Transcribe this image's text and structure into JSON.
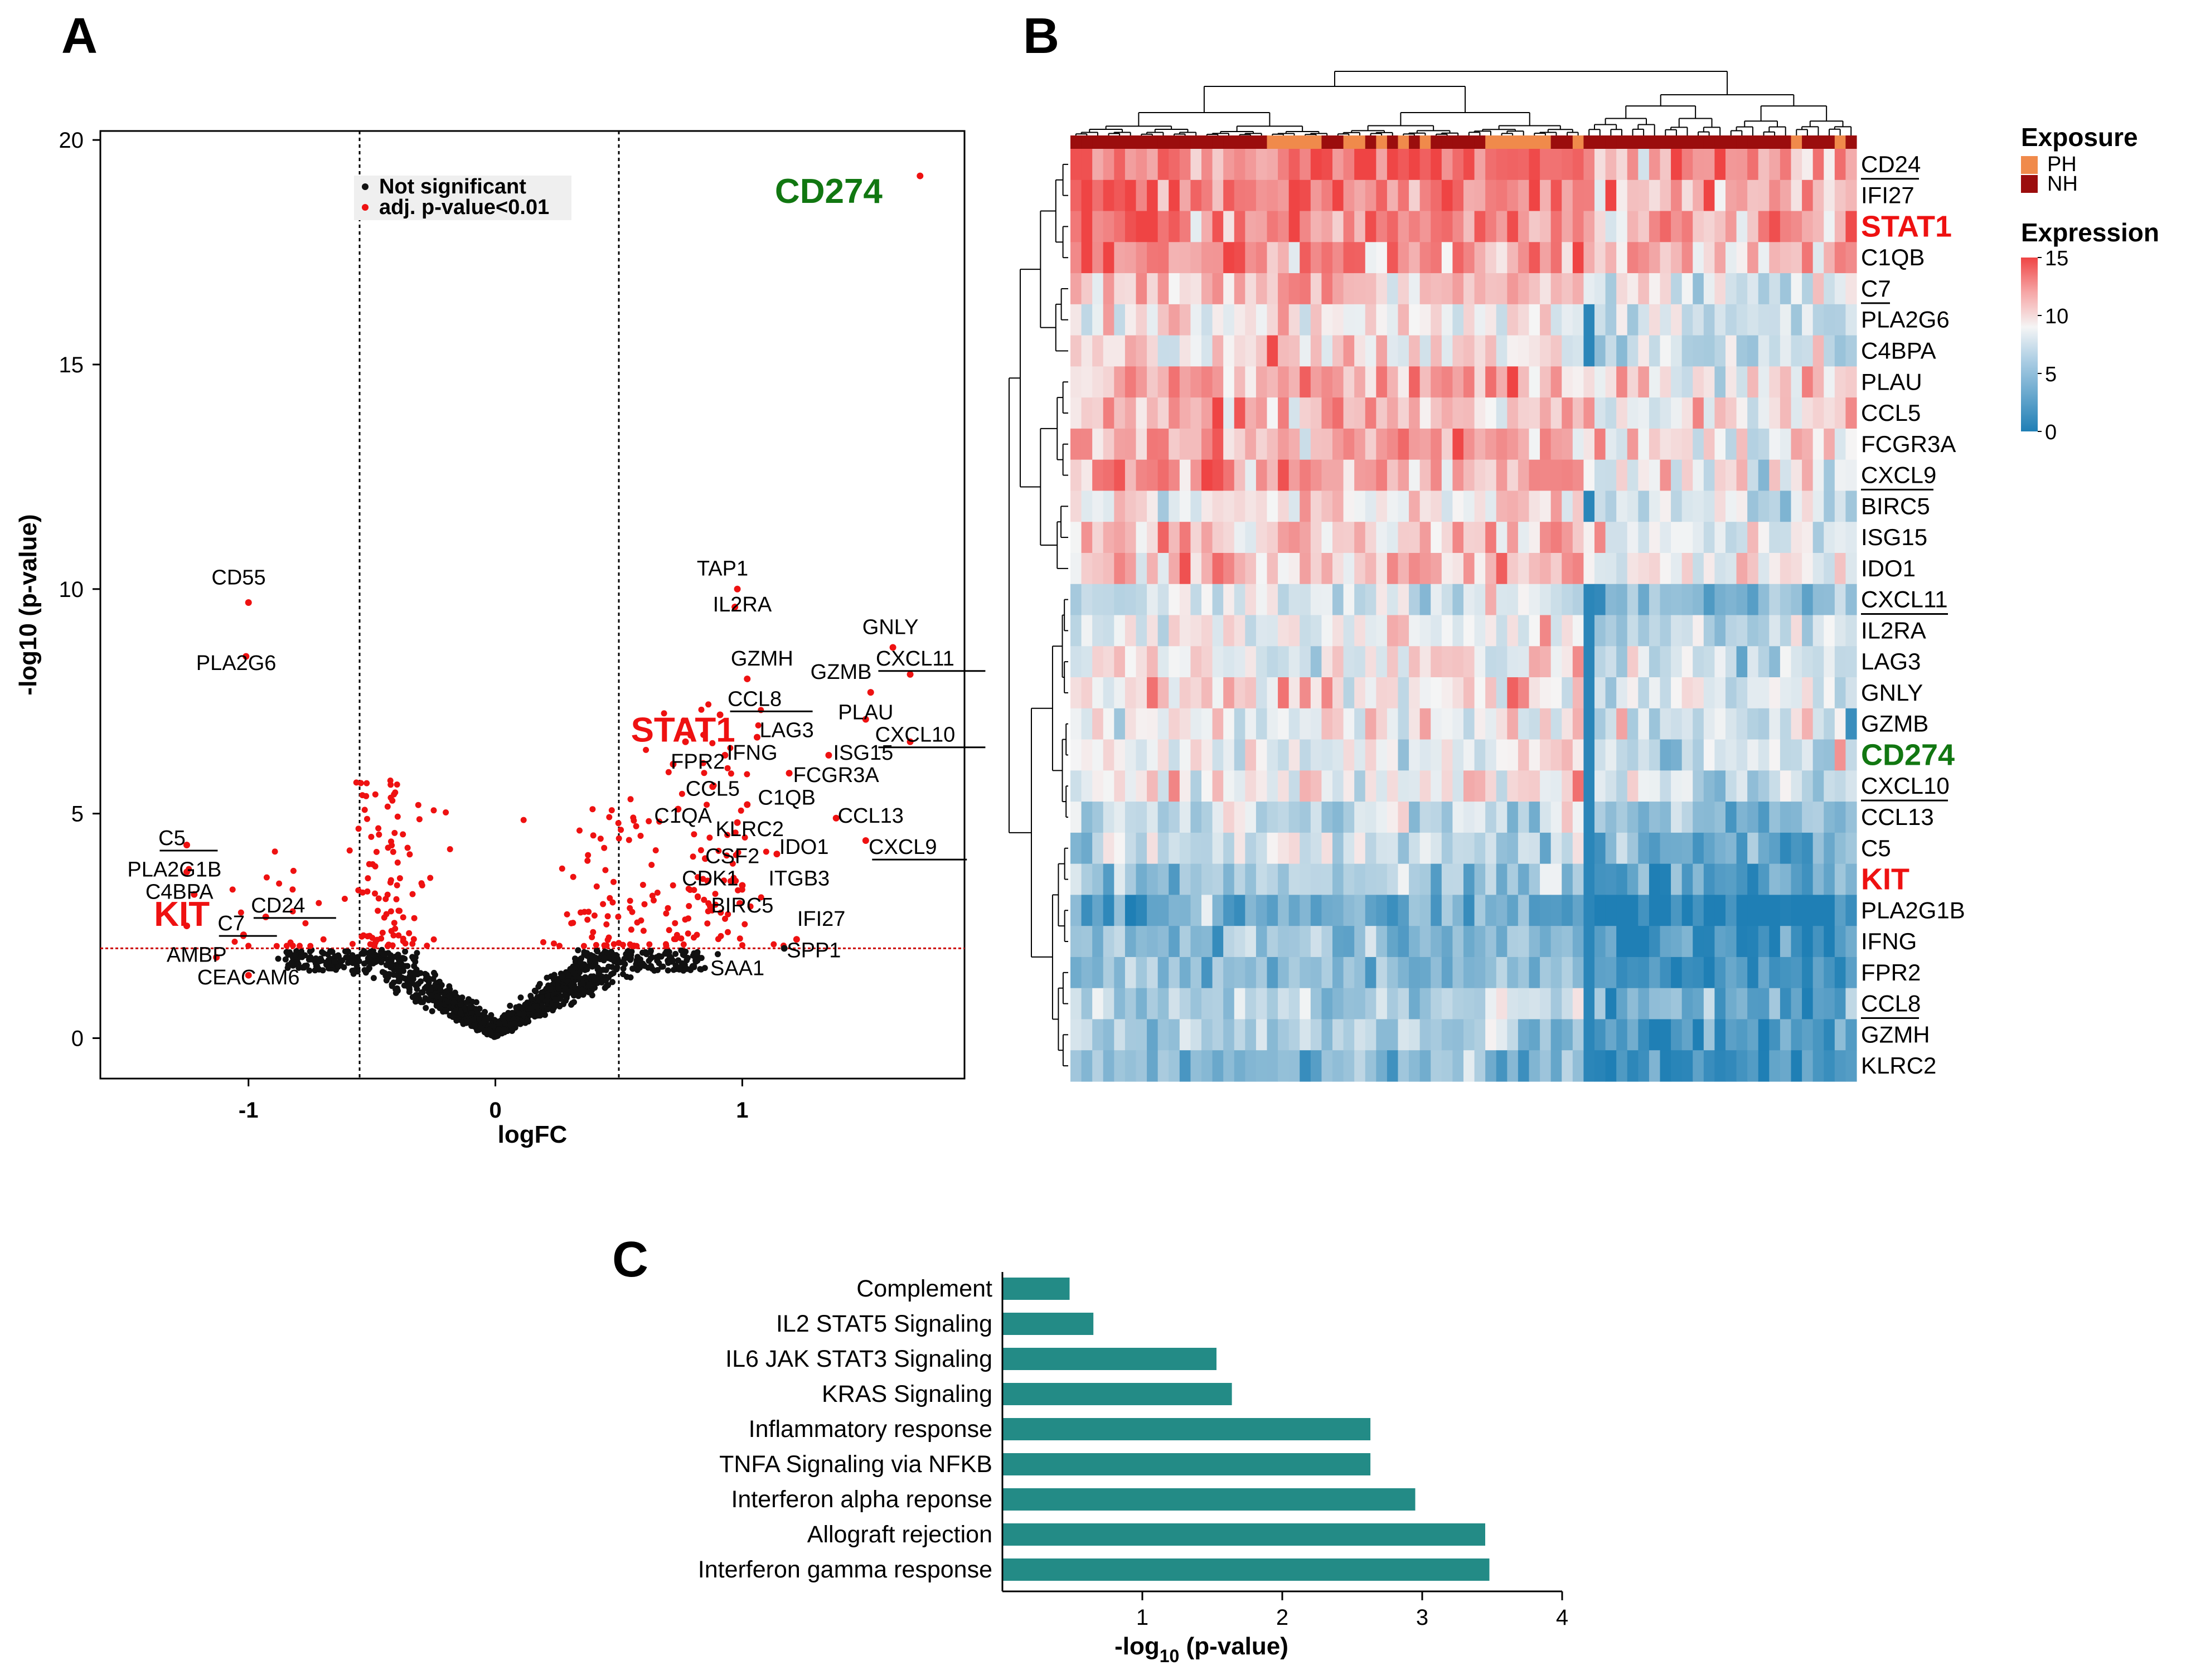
{
  "panels": {
    "a": {
      "letter": "A"
    },
    "b": {
      "letter": "B"
    },
    "c": {
      "letter": "C"
    }
  },
  "colors": {
    "sig": "#ee1111",
    "nonsig": "#111111",
    "highlight_red": "#ee1111",
    "highlight_green": "#117711",
    "bar": "#238b86",
    "ph": "#f08a4b",
    "nh": "#9b0d0d",
    "heat_low": "#1f7fb5",
    "heat_mid": "#f5f5f5",
    "heat_high": "#ef4444"
  },
  "chart_data": [
    {
      "type": "scatter",
      "panel": "A",
      "title": "",
      "xlabel": "logFC",
      "ylabel": "-log10 (p-value)",
      "xlim": [
        -1.6,
        1.9
      ],
      "ylim": [
        -0.9,
        20.2
      ],
      "xticks": [
        -1,
        0,
        1
      ],
      "yticks": [
        0,
        5,
        10,
        15,
        20
      ],
      "xtick_labels": [
        "-1",
        "0",
        "1"
      ],
      "ytick_labels": [
        "0",
        "5",
        "10",
        "15",
        "20"
      ],
      "vlines": [
        -0.55,
        0.5
      ],
      "hline": 2,
      "legend": {
        "placement": "top-left",
        "entries": [
          {
            "label": "Not significant",
            "color": "#111111"
          },
          {
            "label": "adj. p-value<0.01",
            "color": "#ee1111"
          }
        ]
      },
      "background_note": "about 1200 additional unlabeled genes follow the V-shaped distribution; sign generated procedurally",
      "labeled_points": [
        {
          "gene": "CD274",
          "x": 1.72,
          "y": 19.2,
          "lx": 1.35,
          "ly": 18.6,
          "style": "green",
          "underline": false
        },
        {
          "gene": "CD55",
          "x": -1.0,
          "y": 9.7,
          "lx": -1.04,
          "ly": 10.1,
          "style": "normal",
          "underline": false
        },
        {
          "gene": "PLA2G6",
          "x": -1.01,
          "y": 8.5,
          "lx": -1.05,
          "ly": 8.2,
          "style": "normal",
          "underline": false
        },
        {
          "gene": "TAP1",
          "x": 0.98,
          "y": 10.0,
          "lx": 0.92,
          "ly": 10.3,
          "style": "normal",
          "underline": false
        },
        {
          "gene": "IL2RA",
          "x": 0.97,
          "y": 9.6,
          "lx": 1.0,
          "ly": 9.5,
          "style": "normal",
          "underline": false
        },
        {
          "gene": "GNLY",
          "x": 1.61,
          "y": 8.7,
          "lx": 1.6,
          "ly": 9.0,
          "style": "normal",
          "underline": false
        },
        {
          "gene": "CXCL11",
          "x": 1.68,
          "y": 8.1,
          "lx": 1.7,
          "ly": 8.3,
          "style": "normal",
          "underline": true
        },
        {
          "gene": "GZMH",
          "x": 1.02,
          "y": 8.0,
          "lx": 1.08,
          "ly": 8.3,
          "style": "normal",
          "underline": false
        },
        {
          "gene": "GZMB",
          "x": 1.52,
          "y": 7.7,
          "lx": 1.4,
          "ly": 8.0,
          "style": "normal",
          "underline": false
        },
        {
          "gene": "CCL8",
          "x": 0.91,
          "y": 7.2,
          "lx": 1.05,
          "ly": 7.4,
          "style": "normal",
          "underline": true
        },
        {
          "gene": "PLAU",
          "x": 1.5,
          "y": 7.1,
          "lx": 1.5,
          "ly": 7.1,
          "style": "normal",
          "underline": false
        },
        {
          "gene": "STAT1",
          "x": 0.77,
          "y": 6.6,
          "lx": 0.76,
          "ly": 6.6,
          "style": "red",
          "underline": false
        },
        {
          "gene": "LAG3",
          "x": 1.06,
          "y": 6.7,
          "lx": 1.18,
          "ly": 6.7,
          "style": "normal",
          "underline": false
        },
        {
          "gene": "CXCL10",
          "x": 1.68,
          "y": 6.6,
          "lx": 1.7,
          "ly": 6.6,
          "style": "normal",
          "underline": true
        },
        {
          "gene": "IFNG",
          "x": 0.93,
          "y": 6.3,
          "lx": 1.04,
          "ly": 6.2,
          "style": "normal",
          "underline": false
        },
        {
          "gene": "ISG15",
          "x": 1.35,
          "y": 6.3,
          "lx": 1.49,
          "ly": 6.2,
          "style": "normal",
          "underline": false
        },
        {
          "gene": "FPR2",
          "x": 0.72,
          "y": 6.1,
          "lx": 0.82,
          "ly": 6.0,
          "style": "normal",
          "underline": false
        },
        {
          "gene": "FCGR3A",
          "x": 1.19,
          "y": 5.9,
          "lx": 1.38,
          "ly": 5.7,
          "style": "normal",
          "underline": false
        },
        {
          "gene": "CCL5",
          "x": 0.88,
          "y": 5.6,
          "lx": 0.88,
          "ly": 5.4,
          "style": "normal",
          "underline": false
        },
        {
          "gene": "C1QB",
          "x": 1.02,
          "y": 5.2,
          "lx": 1.18,
          "ly": 5.2,
          "style": "normal",
          "underline": false
        },
        {
          "gene": "C1QA",
          "x": 0.74,
          "y": 5.1,
          "lx": 0.76,
          "ly": 4.8,
          "style": "normal",
          "underline": false
        },
        {
          "gene": "CCL13",
          "x": 1.38,
          "y": 4.9,
          "lx": 1.52,
          "ly": 4.8,
          "style": "normal",
          "underline": false
        },
        {
          "gene": "KLRC2",
          "x": 0.98,
          "y": 4.8,
          "lx": 1.03,
          "ly": 4.5,
          "style": "normal",
          "underline": false
        },
        {
          "gene": "CXCL9",
          "x": 1.5,
          "y": 4.4,
          "lx": 1.65,
          "ly": 4.1,
          "style": "normal",
          "underline": true
        },
        {
          "gene": "IDO1",
          "x": 1.14,
          "y": 4.1,
          "lx": 1.25,
          "ly": 4.1,
          "style": "normal",
          "underline": false
        },
        {
          "gene": "CSF2",
          "x": 0.85,
          "y": 4.0,
          "lx": 0.96,
          "ly": 3.9,
          "style": "normal",
          "underline": false
        },
        {
          "gene": "CDK1",
          "x": 0.86,
          "y": 3.5,
          "lx": 0.87,
          "ly": 3.4,
          "style": "normal",
          "underline": false
        },
        {
          "gene": "ITGB3",
          "x": 1.0,
          "y": 3.4,
          "lx": 1.23,
          "ly": 3.4,
          "style": "normal",
          "underline": false
        },
        {
          "gene": "BIRC5",
          "x": 0.99,
          "y": 3.0,
          "lx": 1.0,
          "ly": 2.8,
          "style": "normal",
          "underline": false
        },
        {
          "gene": "IFI27",
          "x": 1.22,
          "y": 2.2,
          "lx": 1.32,
          "ly": 2.5,
          "style": "normal",
          "underline": false
        },
        {
          "gene": "SPP1",
          "x": 1.17,
          "y": 2.0,
          "lx": 1.29,
          "ly": 1.8,
          "style": "normal",
          "underline": false
        },
        {
          "gene": "SAA1",
          "x": 0.8,
          "y": 1.6,
          "lx": 0.98,
          "ly": 1.4,
          "style": "normal",
          "underline": false
        },
        {
          "gene": "C5",
          "x": -1.25,
          "y": 4.3,
          "lx": -1.31,
          "ly": 4.3,
          "style": "normal",
          "underline": true
        },
        {
          "gene": "PLA2G1B",
          "x": -1.25,
          "y": 3.7,
          "lx": -1.3,
          "ly": 3.6,
          "style": "normal",
          "underline": false
        },
        {
          "gene": "C4BPA",
          "x": -1.22,
          "y": 3.2,
          "lx": -1.28,
          "ly": 3.1,
          "style": "normal",
          "underline": false
        },
        {
          "gene": "CD24",
          "x": -0.93,
          "y": 2.7,
          "lx": -0.88,
          "ly": 2.8,
          "style": "normal",
          "underline": true
        },
        {
          "gene": "KIT",
          "x": -1.25,
          "y": 2.5,
          "lx": -1.27,
          "ly": 2.5,
          "style": "red",
          "underline": false
        },
        {
          "gene": "C7",
          "x": -1.02,
          "y": 2.3,
          "lx": -1.07,
          "ly": 2.4,
          "style": "normal",
          "underline": true
        },
        {
          "gene": "AMBP",
          "x": -1.13,
          "y": 1.8,
          "lx": -1.21,
          "ly": 1.7,
          "style": "normal",
          "underline": false
        },
        {
          "gene": "CEACAM6",
          "x": -1.0,
          "y": 1.4,
          "lx": -1.0,
          "ly": 1.2,
          "style": "normal",
          "underline": false
        }
      ]
    },
    {
      "type": "heatmap",
      "panel": "B",
      "title": "",
      "n_samples": 72,
      "sample_groups_note": "per-column annotation bar, PH (light) or NH (dark)",
      "cluster_blocks": [
        {
          "from": 0,
          "to": 46,
          "expr_bias": 1.0
        },
        {
          "from": 47,
          "to": 71,
          "expr_bias": -1.0
        }
      ],
      "genes": [
        {
          "name": "CD24",
          "style": "normal",
          "underline": true,
          "base": 12.5
        },
        {
          "name": "IFI27",
          "style": "normal",
          "underline": false,
          "base": 12.0
        },
        {
          "name": "STAT1",
          "style": "red",
          "underline": false,
          "base": 12.0
        },
        {
          "name": "C1QB",
          "style": "normal",
          "underline": false,
          "base": 11.5
        },
        {
          "name": "C7",
          "style": "normal",
          "underline": true,
          "base": 9.5
        },
        {
          "name": "PLA2G6",
          "style": "normal",
          "underline": false,
          "base": 8.0
        },
        {
          "name": "C4BPA",
          "style": "normal",
          "underline": false,
          "base": 8.5
        },
        {
          "name": "PLAU",
          "style": "normal",
          "underline": false,
          "base": 10.5
        },
        {
          "name": "CCL5",
          "style": "normal",
          "underline": false,
          "base": 10.5
        },
        {
          "name": "FCGR3A",
          "style": "normal",
          "underline": false,
          "base": 10.5
        },
        {
          "name": "CXCL9",
          "style": "normal",
          "underline": true,
          "base": 10.5
        },
        {
          "name": "BIRC5",
          "style": "normal",
          "underline": false,
          "base": 8.5
        },
        {
          "name": "ISG15",
          "style": "normal",
          "underline": false,
          "base": 9.5
        },
        {
          "name": "IDO1",
          "style": "normal",
          "underline": false,
          "base": 10.0
        },
        {
          "name": "CXCL11",
          "style": "normal",
          "underline": true,
          "base": 6.0
        },
        {
          "name": "IL2RA",
          "style": "normal",
          "underline": false,
          "base": 7.5
        },
        {
          "name": "LAG3",
          "style": "normal",
          "underline": false,
          "base": 8.0
        },
        {
          "name": "GNLY",
          "style": "normal",
          "underline": false,
          "base": 8.5
        },
        {
          "name": "GZMB",
          "style": "normal",
          "underline": false,
          "base": 8.0
        },
        {
          "name": "CD274",
          "style": "green",
          "underline": false,
          "base": 8.0
        },
        {
          "name": "CXCL10",
          "style": "normal",
          "underline": true,
          "base": 8.5
        },
        {
          "name": "CCL13",
          "style": "normal",
          "underline": false,
          "base": 6.0
        },
        {
          "name": "C5",
          "style": "normal",
          "underline": false,
          "base": 5.5
        },
        {
          "name": "KIT",
          "style": "red",
          "underline": false,
          "base": 4.0
        },
        {
          "name": "PLA2G1B",
          "style": "normal",
          "underline": false,
          "base": 1.5
        },
        {
          "name": "IFNG",
          "style": "normal",
          "underline": false,
          "base": 3.0
        },
        {
          "name": "FPR2",
          "style": "normal",
          "underline": false,
          "base": 3.0
        },
        {
          "name": "CCL8",
          "style": "normal",
          "underline": true,
          "base": 4.5
        },
        {
          "name": "GZMH",
          "style": "normal",
          "underline": false,
          "base": 3.5
        },
        {
          "name": "KLRC2",
          "style": "normal",
          "underline": false,
          "base": 3.0
        }
      ],
      "scale_range": [
        0,
        15
      ],
      "legend_exposure_title": "Exposure",
      "legend_exposure": [
        {
          "label": "PH",
          "color": "#f08a4b"
        },
        {
          "label": "NH",
          "color": "#9b0d0d"
        }
      ],
      "legend_expression_title": "Expression",
      "legend_expression_ticks": [
        {
          "value": 15,
          "label": "15"
        },
        {
          "value": 10,
          "label": "10"
        },
        {
          "value": 5,
          "label": "5"
        },
        {
          "value": 0,
          "label": "0"
        }
      ]
    },
    {
      "type": "bar",
      "panel": "C",
      "orientation": "horizontal",
      "title": "",
      "xlabel_main": "-log",
      "xlabel_sub": "10",
      "xlabel_tail": " (p-value)",
      "xlim": [
        0,
        4
      ],
      "xticks": [
        1,
        2,
        3,
        4
      ],
      "xtick_labels": [
        "1",
        "2",
        "3",
        "4"
      ],
      "categories": [
        "Complement",
        "IL2 STAT5 Signaling",
        "IL6 JAK STAT3 Signaling",
        "KRAS Signaling",
        "Inflammatory response",
        "TNFA Signaling via NFKB",
        "Interferon alpha reponse",
        "Allograft rejection",
        "Interferon gamma response"
      ],
      "values": [
        0.48,
        0.65,
        1.53,
        1.64,
        2.63,
        2.63,
        2.95,
        3.45,
        3.48
      ]
    }
  ]
}
